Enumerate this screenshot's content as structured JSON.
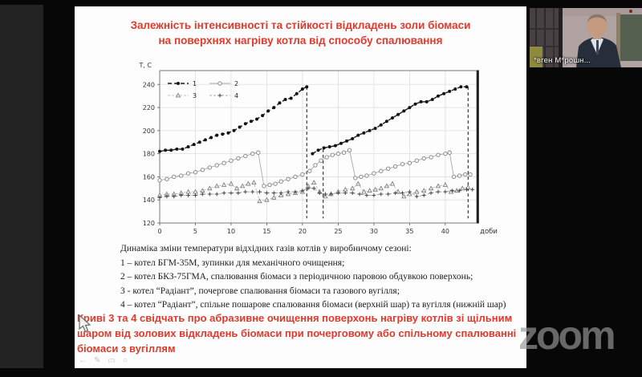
{
  "meeting": {
    "participant_name": "*вген М*рошн...",
    "watermark": "zoom"
  },
  "slide": {
    "accent_color": "#e03a2c",
    "title_line1": "Залежність інтенсивності та стійкості відкладень золи біомаси",
    "title_line2": "на поверхнях нагріву котла від способу спалювання",
    "caption_intro": "Динаміка зміни температури відхідних газів котлів у виробничому сезоні:",
    "caption_items": [
      "1 – котел БГМ-35М, зупинки для механічного очищення;",
      "2 – котел БКЗ-75ГМА, спалювання біомаси з періодичною паровою обдувкою поверхонь;",
      "3 - котел “Радіант”, почергове спалювання біомаси та газового вугілля;",
      "4 – котел “Радіант”, спільне пошарове спалювання біомаси (верхній шар) та вугілля (нижній шар)"
    ],
    "conclusion": "Криві 3 та 4 свідчать про абразивне очищення поверхонь нагріву котлів зі щільним шаром від золових відкладень біомаси при почерговому або спільному спалюванні біомаси з вугіллям"
  },
  "toolbar": {
    "icons": [
      {
        "name": "nav-arrow-icon",
        "glyph": "←"
      },
      {
        "name": "pen-tool-icon",
        "glyph": "✎"
      },
      {
        "name": "slide-frame-icon",
        "glyph": "▭"
      },
      {
        "name": "options-icon",
        "glyph": "○"
      }
    ]
  },
  "chart_data": {
    "type": "line",
    "title": "",
    "xlabel": "доби",
    "ylabel": "Т, С",
    "xlim": [
      0,
      44.4
    ],
    "ylim": [
      120,
      252
    ],
    "xticks": [
      0,
      5,
      10,
      15,
      20,
      25,
      30,
      35,
      40
    ],
    "yticks": [
      120,
      140,
      160,
      180,
      200,
      220,
      240
    ],
    "grid": true,
    "legend_position": "top-left",
    "drop_lines": [
      {
        "x": 20.6,
        "y_top": 238,
        "y_bottom": 124
      },
      {
        "x": 22.9,
        "y_top": 184,
        "y_bottom": 124
      },
      {
        "x": 43.2,
        "y_top": 238,
        "y_bottom": 124
      }
    ],
    "series": [
      {
        "name": "1",
        "marker": "filled-circle",
        "color": "#1a1a1a",
        "width": 1.4,
        "dash": "5 3",
        "segments": [
          [
            [
              0,
              182
            ],
            [
              0.8,
              183
            ],
            [
              1.6,
              183
            ],
            [
              2.4,
              184
            ],
            [
              3.2,
              184
            ],
            [
              4,
              186
            ],
            [
              4.8,
              188
            ],
            [
              5.6,
              190
            ],
            [
              6.4,
              192
            ],
            [
              7.2,
              194
            ],
            [
              8,
              196
            ],
            [
              8.8,
              197
            ],
            [
              9.6,
              198
            ],
            [
              10.4,
              200
            ],
            [
              11.2,
              203
            ],
            [
              12,
              206
            ],
            [
              12.8,
              208
            ],
            [
              13.6,
              210
            ],
            [
              14.4,
              213
            ],
            [
              15.2,
              217
            ],
            [
              16,
              220
            ],
            [
              16.8,
              224
            ],
            [
              17.6,
              227
            ],
            [
              18.4,
              228
            ],
            [
              19.2,
              232
            ],
            [
              20,
              236
            ],
            [
              20.6,
              238
            ]
          ],
          [
            [
              21.4,
              180
            ],
            [
              22.2,
              183
            ],
            [
              23,
              185
            ],
            [
              23.8,
              186
            ],
            [
              24.6,
              187
            ],
            [
              25.4,
              189
            ],
            [
              26.2,
              191
            ],
            [
              27,
              193
            ],
            [
              27.8,
              196
            ],
            [
              28.6,
              198
            ],
            [
              29.4,
              200
            ],
            [
              30.2,
              202
            ],
            [
              31,
              205
            ],
            [
              31.8,
              208
            ],
            [
              32.6,
              211
            ],
            [
              33.4,
              214
            ],
            [
              34.2,
              217
            ],
            [
              35,
              220
            ],
            [
              35.8,
              223
            ],
            [
              36.6,
              225
            ],
            [
              37.4,
              225
            ],
            [
              38.2,
              227
            ],
            [
              39,
              230
            ],
            [
              39.8,
              232
            ],
            [
              40.6,
              234
            ],
            [
              41.4,
              236
            ],
            [
              42.2,
              238
            ],
            [
              43,
              238
            ]
          ]
        ]
      },
      {
        "name": "2",
        "marker": "open-circle",
        "color": "#a8a8a8",
        "width": 0.9,
        "dash": null,
        "segments": [
          [
            [
              0,
              157
            ],
            [
              1,
              158
            ],
            [
              2,
              160
            ],
            [
              3,
              161
            ],
            [
              4,
              163
            ],
            [
              5,
              164
            ],
            [
              6,
              166
            ],
            [
              7,
              168
            ],
            [
              8,
              170
            ],
            [
              9,
              172
            ],
            [
              10,
              174
            ],
            [
              11,
              176
            ],
            [
              12,
              178
            ],
            [
              13,
              180
            ],
            [
              13.8,
              181
            ],
            [
              14.6,
              152
            ],
            [
              15.4,
              153
            ],
            [
              16.2,
              154
            ],
            [
              17,
              156
            ],
            [
              18,
              158
            ],
            [
              19,
              160
            ],
            [
              20,
              162
            ],
            [
              21,
              165
            ],
            [
              21.8,
              170
            ],
            [
              22.6,
              174
            ],
            [
              23.4,
              177
            ],
            [
              24.2,
              179
            ],
            [
              25,
              180
            ],
            [
              25.8,
              181
            ],
            [
              26.6,
              183
            ],
            [
              27.4,
              159
            ],
            [
              28.2,
              160
            ],
            [
              29,
              161
            ],
            [
              30,
              163
            ],
            [
              31,
              165
            ],
            [
              32,
              167
            ],
            [
              33,
              169
            ],
            [
              34,
              171
            ],
            [
              35,
              172
            ],
            [
              36,
              174
            ],
            [
              37,
              176
            ],
            [
              38,
              177
            ],
            [
              39,
              179
            ],
            [
              40,
              180
            ],
            [
              40.6,
              181
            ],
            [
              41.2,
              160
            ],
            [
              42,
              161
            ],
            [
              42.8,
              162
            ],
            [
              43.5,
              162
            ]
          ]
        ]
      },
      {
        "name": "3",
        "marker": "triangle",
        "color": "#b0b0b0",
        "width": 0.8,
        "dash": "3 2",
        "segments": [
          [
            [
              0,
              144
            ],
            [
              1,
              145
            ],
            [
              2,
              145
            ],
            [
              3,
              146
            ],
            [
              4,
              147
            ],
            [
              5,
              147
            ],
            [
              6,
              148
            ],
            [
              7,
              150
            ],
            [
              8,
              152
            ],
            [
              9,
              153
            ],
            [
              10,
              154
            ],
            [
              10.8,
              150
            ],
            [
              11.6,
              152
            ],
            [
              12.4,
              154
            ],
            [
              13.2,
              155
            ],
            [
              14,
              139
            ],
            [
              15,
              140
            ],
            [
              16,
              142
            ],
            [
              17,
              144
            ],
            [
              18,
              145
            ],
            [
              19,
              146
            ],
            [
              20,
              147
            ],
            [
              20.8,
              152
            ],
            [
              21.6,
              155
            ],
            [
              22.4,
              147
            ],
            [
              23.2,
              143
            ],
            [
              24,
              145
            ],
            [
              25,
              147
            ],
            [
              26,
              149
            ],
            [
              27,
              150
            ],
            [
              27.8,
              154
            ],
            [
              28.6,
              147
            ],
            [
              29.4,
              148
            ],
            [
              30.2,
              149
            ],
            [
              31,
              150
            ],
            [
              31.8,
              152
            ],
            [
              32.6,
              154
            ],
            [
              33.4,
              147
            ],
            [
              34.2,
              143
            ],
            [
              35,
              145
            ],
            [
              36,
              147
            ],
            [
              37,
              148
            ],
            [
              38,
              150
            ],
            [
              39,
              152
            ],
            [
              40,
              153
            ],
            [
              40.8,
              147
            ],
            [
              41.6,
              148
            ],
            [
              42.4,
              150
            ],
            [
              43.2,
              151
            ]
          ]
        ]
      },
      {
        "name": "4",
        "marker": "plus",
        "color": "#909090",
        "width": 0.8,
        "dash": "3 2",
        "segments": [
          [
            [
              0,
              142
            ],
            [
              1,
              143
            ],
            [
              2,
              143
            ],
            [
              3,
              144
            ],
            [
              4,
              144
            ],
            [
              5,
              144
            ],
            [
              6,
              145
            ],
            [
              7,
              145
            ],
            [
              8,
              145
            ],
            [
              9,
              146
            ],
            [
              10,
              146
            ],
            [
              11,
              146
            ],
            [
              12,
              147
            ],
            [
              13,
              147
            ],
            [
              14,
              147
            ],
            [
              15,
              146
            ],
            [
              16,
              146
            ],
            [
              17,
              146
            ],
            [
              18,
              147
            ],
            [
              19,
              147
            ],
            [
              20,
              148
            ],
            [
              20.8,
              150
            ],
            [
              21.6,
              150
            ],
            [
              22.4,
              146
            ],
            [
              23.2,
              145
            ],
            [
              24,
              145
            ],
            [
              25,
              146
            ],
            [
              26,
              146
            ],
            [
              27,
              146
            ],
            [
              28,
              145
            ],
            [
              29,
              144
            ],
            [
              30,
              144
            ],
            [
              31,
              145
            ],
            [
              32,
              145
            ],
            [
              33,
              146
            ],
            [
              34,
              146
            ],
            [
              35,
              147
            ],
            [
              36,
              143
            ],
            [
              37,
              144
            ],
            [
              38,
              146
            ],
            [
              39,
              147
            ],
            [
              40,
              147
            ],
            [
              41,
              148
            ],
            [
              42,
              148
            ],
            [
              43,
              149
            ],
            [
              43.8,
              149
            ]
          ]
        ]
      }
    ]
  }
}
